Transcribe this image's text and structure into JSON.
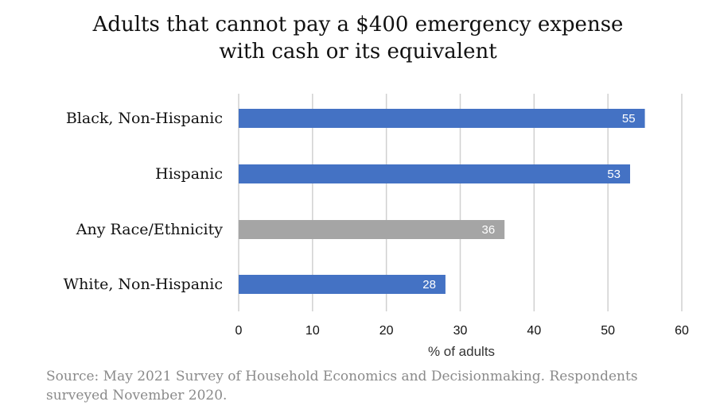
{
  "chart_data": {
    "type": "bar",
    "orientation": "horizontal",
    "title_lines": [
      "Adults that cannot pay a $400 emergency expense",
      "with cash or its equivalent"
    ],
    "categories": [
      "Black, Non-Hispanic",
      "Hispanic",
      "Any Race/Ethnicity",
      "White, Non-Hispanic"
    ],
    "values": [
      55,
      53,
      36,
      28
    ],
    "bar_colors": [
      "#4472C4",
      "#4472C4",
      "#A5A5A5",
      "#4472C4"
    ],
    "xlabel": "% of adults",
    "ylabel": "",
    "xlim": [
      0,
      60
    ],
    "xticks": [
      0,
      10,
      20,
      30,
      40,
      50,
      60
    ],
    "grid": "vertical",
    "legend": "none"
  },
  "source": {
    "line1": "Source: May 2021 Survey of Household Economics and Decisionmaking. Respondents",
    "line2": "surveyed November 2020."
  }
}
